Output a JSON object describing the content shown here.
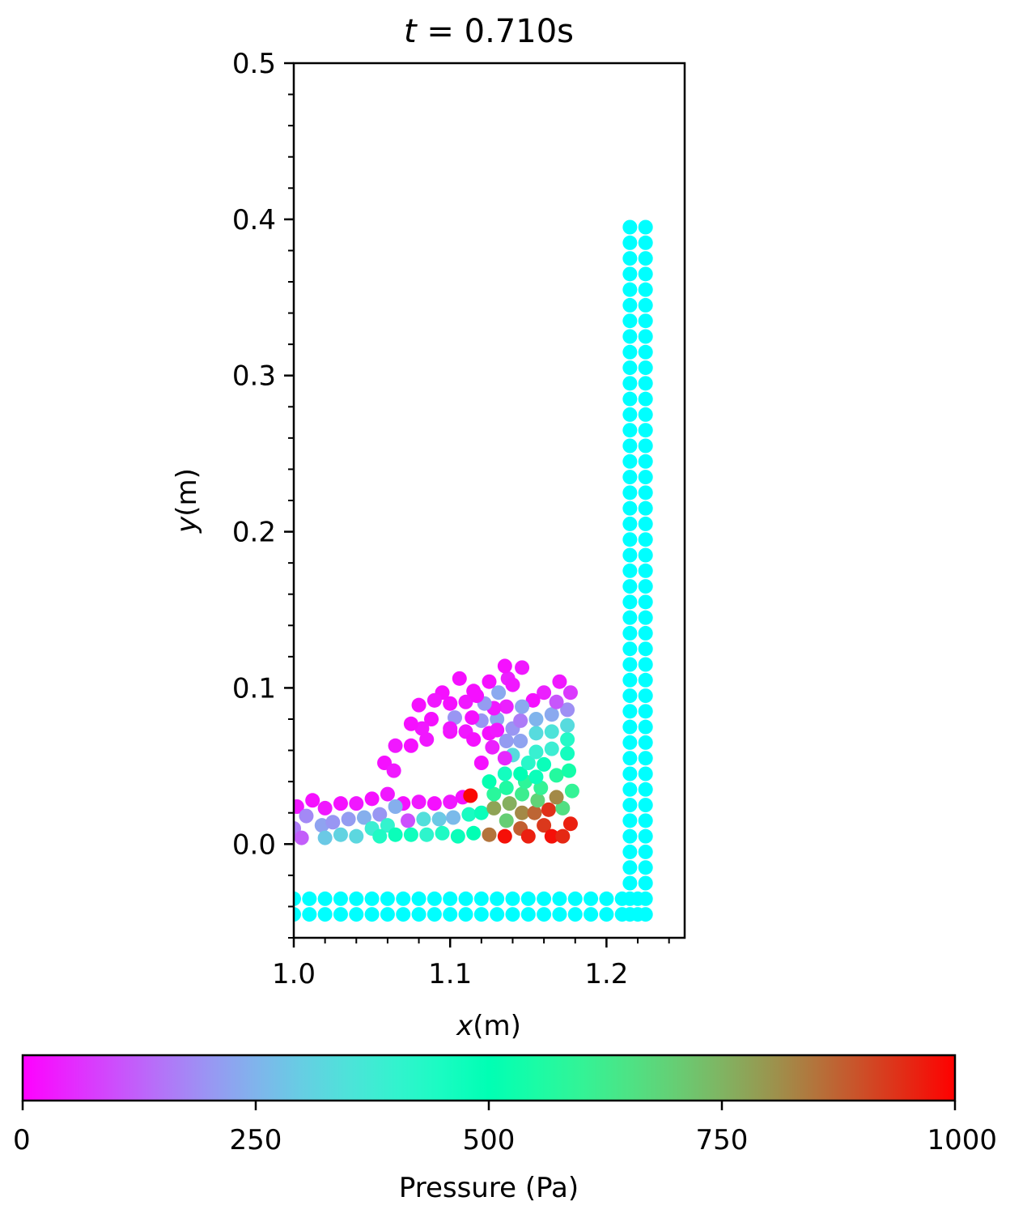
{
  "chart_data": {
    "type": "scatter",
    "title": "t = 0.710s",
    "title_var": "t",
    "title_rest": " =  0.710s",
    "xlabel_var": "x",
    "xlabel_unit": "(m)",
    "ylabel_var": "y",
    "ylabel_unit": "(m)",
    "xlim": [
      1.0,
      1.25
    ],
    "ylim": [
      -0.06,
      0.5
    ],
    "xticks": [
      1.0,
      1.1,
      1.2
    ],
    "xtick_labels": [
      "1.0",
      "1.1",
      "1.2"
    ],
    "yticks": [
      0.0,
      0.1,
      0.2,
      0.3,
      0.4,
      0.5
    ],
    "ytick_labels": [
      "0.0",
      "0.1",
      "0.2",
      "0.3",
      "0.4",
      "0.5"
    ],
    "colorbar": {
      "label": "Pressure (Pa)",
      "range": [
        0,
        1000
      ],
      "ticks": [
        0,
        250,
        500,
        750,
        1000
      ],
      "tick_labels": [
        "0",
        "250",
        "500",
        "750",
        "1000"
      ],
      "colormap": "rainbow"
    },
    "boundary": {
      "color": "#00FFFF",
      "wall_x": [
        1.215,
        1.225
      ],
      "wall_y_range": [
        -0.045,
        0.395
      ],
      "floor_y": [
        -0.035,
        -0.045
      ],
      "floor_x_range": [
        1.0,
        1.225
      ],
      "spacing": 0.01
    },
    "fluid_points": [
      [
        1.002,
        0.024,
        30
      ],
      [
        1.012,
        0.028,
        20
      ],
      [
        1.02,
        0.023,
        30
      ],
      [
        1.03,
        0.026,
        20
      ],
      [
        1.04,
        0.026,
        30
      ],
      [
        1.05,
        0.029,
        20
      ],
      [
        1.06,
        0.032,
        30
      ],
      [
        1.07,
        0.026,
        20
      ],
      [
        1.08,
        0.027,
        30
      ],
      [
        1.09,
        0.026,
        20
      ],
      [
        1.1,
        0.027,
        30
      ],
      [
        1.108,
        0.03,
        20
      ],
      [
        1.113,
        0.031,
        990
      ],
      [
        1.008,
        0.018,
        180
      ],
      [
        1.018,
        0.012,
        220
      ],
      [
        1.025,
        0.014,
        200
      ],
      [
        1.035,
        0.016,
        210
      ],
      [
        1.045,
        0.017,
        240
      ],
      [
        1.055,
        0.019,
        200
      ],
      [
        1.065,
        0.024,
        240
      ],
      [
        1.073,
        0.015,
        100
      ],
      [
        1.083,
        0.016,
        340
      ],
      [
        1.093,
        0.016,
        290
      ],
      [
        1.102,
        0.017,
        260
      ],
      [
        1.112,
        0.019,
        450
      ],
      [
        1.12,
        0.02,
        480
      ],
      [
        1.0,
        0.01,
        160
      ],
      [
        1.005,
        0.004,
        120
      ],
      [
        1.02,
        0.004,
        290
      ],
      [
        1.03,
        0.006,
        310
      ],
      [
        1.04,
        0.005,
        320
      ],
      [
        1.05,
        0.01,
        380
      ],
      [
        1.06,
        0.012,
        400
      ],
      [
        1.055,
        0.005,
        440
      ],
      [
        1.065,
        0.006,
        480
      ],
      [
        1.075,
        0.006,
        470
      ],
      [
        1.085,
        0.006,
        410
      ],
      [
        1.095,
        0.007,
        440
      ],
      [
        1.105,
        0.005,
        480
      ],
      [
        1.115,
        0.007,
        500
      ],
      [
        1.125,
        0.006,
        850
      ],
      [
        1.135,
        0.005,
        980
      ],
      [
        1.145,
        0.01,
        880
      ],
      [
        1.15,
        0.005,
        960
      ],
      [
        1.16,
        0.012,
        930
      ],
      [
        1.165,
        0.005,
        980
      ],
      [
        1.172,
        0.005,
        950
      ],
      [
        1.177,
        0.013,
        960
      ],
      [
        1.128,
        0.023,
        780
      ],
      [
        1.138,
        0.026,
        760
      ],
      [
        1.146,
        0.02,
        820
      ],
      [
        1.154,
        0.02,
        870
      ],
      [
        1.163,
        0.022,
        940
      ],
      [
        1.172,
        0.023,
        660
      ],
      [
        1.168,
        0.03,
        820
      ],
      [
        1.178,
        0.034,
        600
      ],
      [
        1.136,
        0.015,
        700
      ],
      [
        1.156,
        0.028,
        690
      ],
      [
        1.146,
        0.032,
        620
      ],
      [
        1.128,
        0.032,
        580
      ],
      [
        1.136,
        0.036,
        560
      ],
      [
        1.148,
        0.04,
        590
      ],
      [
        1.158,
        0.036,
        600
      ],
      [
        1.168,
        0.044,
        570
      ],
      [
        1.176,
        0.047,
        540
      ],
      [
        1.125,
        0.04,
        510
      ],
      [
        1.135,
        0.045,
        460
      ],
      [
        1.145,
        0.045,
        500
      ],
      [
        1.155,
        0.043,
        480
      ],
      [
        1.16,
        0.051,
        480
      ],
      [
        1.15,
        0.052,
        420
      ],
      [
        1.14,
        0.057,
        330
      ],
      [
        1.155,
        0.059,
        390
      ],
      [
        1.165,
        0.061,
        380
      ],
      [
        1.175,
        0.058,
        460
      ],
      [
        1.175,
        0.067,
        430
      ],
      [
        1.165,
        0.072,
        350
      ],
      [
        1.155,
        0.071,
        330
      ],
      [
        1.145,
        0.066,
        220
      ],
      [
        1.136,
        0.066,
        210
      ],
      [
        1.127,
        0.062,
        40
      ],
      [
        1.135,
        0.055,
        50
      ],
      [
        1.12,
        0.052,
        20
      ],
      [
        1.1,
        0.072,
        20
      ],
      [
        1.11,
        0.072,
        30
      ],
      [
        1.115,
        0.067,
        20
      ],
      [
        1.12,
        0.079,
        200
      ],
      [
        1.13,
        0.08,
        230
      ],
      [
        1.14,
        0.074,
        200
      ],
      [
        1.145,
        0.079,
        160
      ],
      [
        1.155,
        0.08,
        250
      ],
      [
        1.165,
        0.083,
        230
      ],
      [
        1.175,
        0.076,
        330
      ],
      [
        1.175,
        0.086,
        190
      ],
      [
        1.168,
        0.091,
        110
      ],
      [
        1.16,
        0.097,
        40
      ],
      [
        1.153,
        0.092,
        20
      ],
      [
        1.146,
        0.088,
        230
      ],
      [
        1.136,
        0.088,
        40
      ],
      [
        1.128,
        0.087,
        30
      ],
      [
        1.122,
        0.09,
        210
      ],
      [
        1.131,
        0.097,
        230
      ],
      [
        1.137,
        0.106,
        40
      ],
      [
        1.146,
        0.113,
        30
      ],
      [
        1.135,
        0.114,
        20
      ],
      [
        1.14,
        0.102,
        30
      ],
      [
        1.125,
        0.104,
        20
      ],
      [
        1.115,
        0.098,
        20
      ],
      [
        1.106,
        0.106,
        20
      ],
      [
        1.095,
        0.097,
        20
      ],
      [
        1.09,
        0.092,
        30
      ],
      [
        1.1,
        0.09,
        20
      ],
      [
        1.11,
        0.091,
        30
      ],
      [
        1.114,
        0.081,
        20
      ],
      [
        1.103,
        0.081,
        200
      ],
      [
        1.1,
        0.074,
        30
      ],
      [
        1.088,
        0.08,
        20
      ],
      [
        1.08,
        0.089,
        20
      ],
      [
        1.082,
        0.074,
        30
      ],
      [
        1.075,
        0.077,
        20
      ],
      [
        1.085,
        0.067,
        30
      ],
      [
        1.075,
        0.063,
        20
      ],
      [
        1.065,
        0.063,
        30
      ],
      [
        1.058,
        0.052,
        20
      ],
      [
        1.064,
        0.047,
        30
      ],
      [
        1.117,
        0.095,
        20
      ],
      [
        1.17,
        0.104,
        30
      ],
      [
        1.177,
        0.097,
        70
      ],
      [
        1.125,
        0.071,
        20
      ],
      [
        1.13,
        0.073,
        30
      ]
    ]
  }
}
